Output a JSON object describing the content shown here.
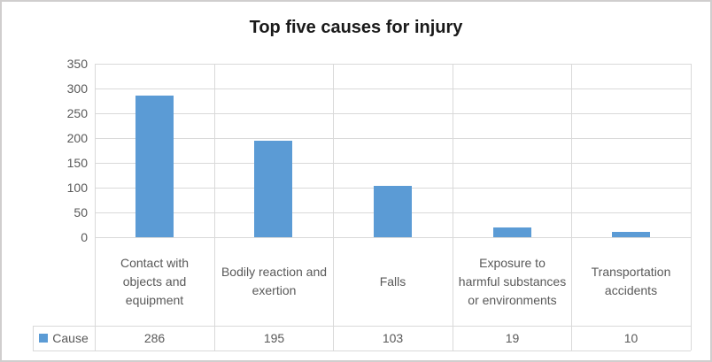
{
  "chart_data": {
    "type": "bar",
    "title": "Top five causes for injury",
    "categories": [
      "Contact with objects and equipment",
      "Bodily reaction and exertion",
      "Falls",
      "Exposure to harmful substances or environments",
      "Transportation accidents"
    ],
    "series": [
      {
        "name": "Cause",
        "values": [
          286,
          195,
          103,
          19,
          10
        ]
      }
    ],
    "xlabel": "",
    "ylabel": "",
    "ylim": [
      0,
      350
    ],
    "ytick_interval": 50,
    "yticks": [
      0,
      50,
      100,
      150,
      200,
      250,
      300,
      350
    ],
    "grid": true,
    "data_table": true,
    "legend_position": "data-table-left",
    "colors": {
      "bar": "#5B9BD5",
      "gridline": "#D9D9D9",
      "axis_text": "#595959",
      "title_text": "#1A1A1A",
      "chart_border": "#D0CECE",
      "background": "#FFFFFF"
    }
  }
}
